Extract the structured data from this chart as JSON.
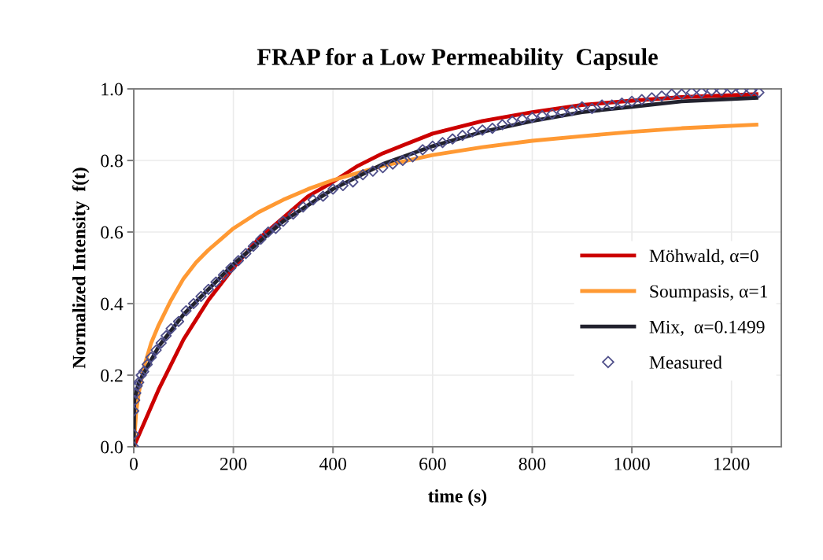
{
  "chart_data": {
    "type": "line",
    "title": "FRAP for a Low Permeability  Capsule",
    "xlabel": "time (s)",
    "ylabel": "Normalized Intensity  f(t)",
    "xlim": [
      0,
      1300
    ],
    "xticks": [
      0,
      200,
      400,
      600,
      800,
      1000,
      1200
    ],
    "ylim": [
      0,
      1.0
    ],
    "yticks": [
      {
        "value": 0,
        "label": "0.0"
      },
      {
        "value": 0.2,
        "label": "0.2"
      },
      {
        "value": 0.4,
        "label": "0.4"
      },
      {
        "value": 0.6,
        "label": "0.6"
      },
      {
        "value": 0.8,
        "label": "0.8"
      },
      {
        "value": 1.0,
        "label": "1.0"
      }
    ],
    "grid": true,
    "legend": "right",
    "series": [
      {
        "name": "Möhwald, α=0",
        "color": "#cc0000",
        "x": [
          0,
          50,
          100,
          150,
          200,
          250,
          300,
          350,
          400,
          450,
          500,
          600,
          700,
          800,
          900,
          1000,
          1100,
          1250
        ],
        "values": [
          0,
          0.16,
          0.3,
          0.41,
          0.5,
          0.58,
          0.64,
          0.7,
          0.74,
          0.785,
          0.82,
          0.875,
          0.91,
          0.935,
          0.955,
          0.967,
          0.977,
          0.985
        ]
      },
      {
        "name": "Soumpasis, α=1",
        "color": "#ff9933",
        "x": [
          0,
          5,
          10,
          20,
          35,
          50,
          75,
          100,
          125,
          150,
          175,
          200,
          250,
          300,
          350,
          400,
          450,
          500,
          600,
          700,
          800,
          900,
          1000,
          1100,
          1250
        ],
        "values": [
          0,
          0.1,
          0.15,
          0.22,
          0.29,
          0.34,
          0.41,
          0.47,
          0.515,
          0.55,
          0.58,
          0.61,
          0.655,
          0.69,
          0.72,
          0.745,
          0.765,
          0.785,
          0.815,
          0.837,
          0.855,
          0.868,
          0.88,
          0.89,
          0.9
        ]
      },
      {
        "name": "Mix,  α=0.1499",
        "color": "#22222e",
        "x": [
          0,
          1,
          10,
          30,
          50,
          100,
          150,
          200,
          300,
          400,
          500,
          600,
          700,
          800,
          900,
          1000,
          1100,
          1250
        ],
        "values": [
          0,
          0.13,
          0.18,
          0.23,
          0.28,
          0.37,
          0.44,
          0.51,
          0.63,
          0.72,
          0.79,
          0.84,
          0.88,
          0.91,
          0.935,
          0.95,
          0.965,
          0.975
        ]
      },
      {
        "name": "Measured",
        "type": "scatter",
        "marker": "diamond",
        "color": "#4f4f8a",
        "x": [
          0,
          0,
          0,
          2,
          4,
          7,
          10,
          15,
          20,
          27,
          35,
          45,
          55,
          65,
          75,
          90,
          105,
          120,
          135,
          150,
          165,
          180,
          195,
          210,
          225,
          240,
          255,
          270,
          285,
          300,
          320,
          340,
          360,
          380,
          400,
          420,
          440,
          460,
          480,
          500,
          520,
          540,
          560,
          580,
          600,
          620,
          640,
          660,
          680,
          700,
          720,
          740,
          760,
          780,
          800,
          820,
          840,
          860,
          880,
          900,
          920,
          940,
          960,
          980,
          1000,
          1020,
          1040,
          1060,
          1080,
          1100,
          1120,
          1140,
          1160,
          1180,
          1200,
          1220,
          1240,
          1255
        ],
        "values": [
          0,
          0.035,
          0.1,
          0.13,
          0.15,
          0.17,
          0.18,
          0.2,
          0.21,
          0.23,
          0.25,
          0.27,
          0.29,
          0.31,
          0.33,
          0.35,
          0.38,
          0.4,
          0.42,
          0.44,
          0.46,
          0.48,
          0.5,
          0.52,
          0.54,
          0.56,
          0.58,
          0.6,
          0.61,
          0.63,
          0.65,
          0.67,
          0.69,
          0.7,
          0.72,
          0.73,
          0.74,
          0.76,
          0.77,
          0.78,
          0.79,
          0.8,
          0.81,
          0.83,
          0.84,
          0.85,
          0.86,
          0.87,
          0.88,
          0.885,
          0.89,
          0.9,
          0.91,
          0.915,
          0.92,
          0.925,
          0.93,
          0.935,
          0.94,
          0.95,
          0.945,
          0.955,
          0.955,
          0.96,
          0.965,
          0.97,
          0.975,
          0.98,
          0.985,
          0.985,
          0.99,
          0.99,
          0.995,
          0.995,
          1.0,
          0.995,
          0.995,
          0.99
        ]
      }
    ]
  }
}
